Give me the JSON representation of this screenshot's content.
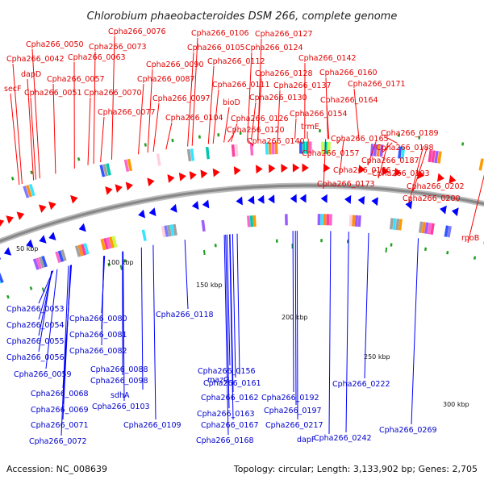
{
  "title": "Chlorobium phaeobacteroides DSM 266, complete genome",
  "accession_text": "Accession: NC_008639",
  "stats_text": "Topology: circular; Length: 3,133,902 bp; Genes: 2,705",
  "ticks": [
    "50 kbp",
    "100 kbp",
    "150 kbp",
    "200 kbp",
    "250 kbp",
    "300 kbp"
  ],
  "colors": {
    "forward": "#ff0000",
    "reverse": "#0000ff",
    "backbone": "#888888"
  },
  "forward_labels": [
    "Cpha266_0050",
    "Cpha266_0042",
    "secF",
    "dapD",
    "Cpha266_0051",
    "Cpha266_0057",
    "Cpha266_0063",
    "Cpha266_0073",
    "Cpha266_0076",
    "Cpha266_0070",
    "Cpha266_0077",
    "Cpha266_0090",
    "Cpha266_0087",
    "Cpha266_0097",
    "Cpha266_0104",
    "Cpha266_0106",
    "Cpha266_0105",
    "Cpha266_0112",
    "Cpha266_0111",
    "bioD",
    "Cpha266_0120",
    "Cpha266_0127",
    "Cpha266_0124",
    "Cpha266_0128",
    "Cpha266_0137",
    "Cpha266_0130",
    "Cpha266_0126",
    "Cpha266_0140",
    "Cpha266_0142",
    "Cpha266_0160",
    "Cpha266_0171",
    "Cpha266_0164",
    "Cpha266_0154",
    "trmE",
    "Cpha266_0157",
    "Cpha266_0165",
    "Cpha266_0166",
    "Cpha266_0173",
    "Cpha266_0189",
    "Cpha266_0188",
    "Cpha266_0187",
    "Cpha266_0193",
    "Cpha266_0202",
    "Cpha266_0200",
    "rpoB"
  ],
  "reverse_labels": [
    "Cpha266_0053",
    "Cpha266_0054",
    "Cpha266_0055",
    "Cpha266_0056",
    "Cpha266_0059",
    "Cpha266_0068",
    "Cpha266_0069",
    "Cpha266_0071",
    "Cpha266_0072",
    "Cpha266_0080",
    "Cpha266_0081",
    "Cpha266_0082",
    "Cpha266_0088",
    "Cpha266_0098",
    "sdhA",
    "Cpha266_0103",
    "Cpha266_0109",
    "Cpha266_0118",
    "mazG",
    "Cpha266_0156",
    "Cpha266_0161",
    "Cpha266_0162",
    "Cpha266_0163",
    "Cpha266_0167",
    "Cpha266_0168",
    "Cpha266_0192",
    "Cpha266_0197",
    "Cpha266_0217",
    "dapF",
    "Cpha266_0242",
    "Cpha266_0222",
    "Cpha266_0269"
  ]
}
